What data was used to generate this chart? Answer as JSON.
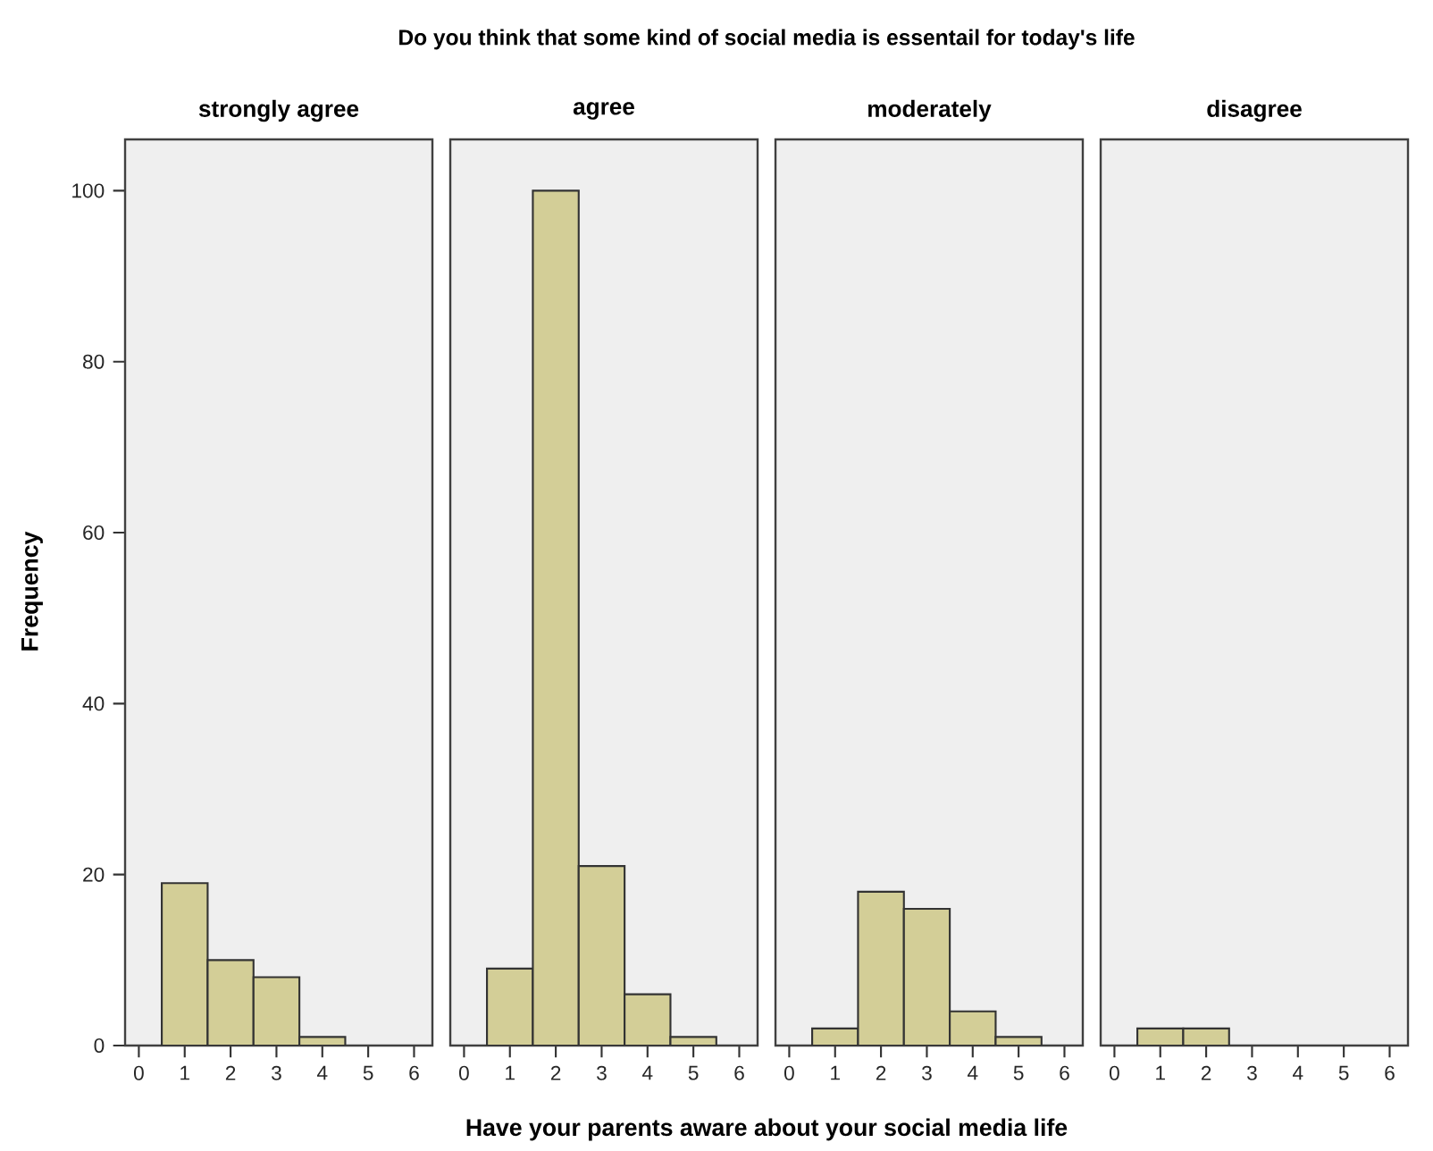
{
  "chart_data": [
    {
      "type": "histogram",
      "title": "Do you think that some kind of social media is essentail for today's life",
      "subtitle": "strongly agree",
      "xlabel": "Have your parents aware about your social media life",
      "ylabel": "Frequency",
      "bins": [
        0.5,
        1.5,
        2.5,
        3.5,
        4.5
      ],
      "values": [
        19,
        10,
        8,
        1
      ],
      "color": "#d3ce97",
      "xlim": [
        -0.3,
        6.4
      ],
      "ylim": [
        0,
        106
      ],
      "xticks": [
        0,
        1,
        2,
        3,
        4,
        5,
        6
      ],
      "yticks": [
        0,
        20,
        40,
        60,
        80,
        100
      ]
    },
    {
      "type": "histogram",
      "subtitle": "agree",
      "bins": [
        0.5,
        1.5,
        2.5,
        3.5,
        4.5,
        5.5
      ],
      "values": [
        9,
        100,
        21,
        6,
        1
      ],
      "color": "#d3ce97",
      "xlim": [
        -0.3,
        6.4
      ],
      "ylim": [
        0,
        106
      ],
      "xticks": [
        0,
        1,
        2,
        3,
        4,
        5,
        6
      ],
      "tick_labels": "x"
    },
    {
      "type": "histogram",
      "subtitle": "moderately",
      "bins": [
        0.5,
        1.5,
        2.5,
        3.5,
        4.5,
        5.5
      ],
      "values": [
        2,
        18,
        16,
        4,
        1
      ],
      "color": "#d3ce97",
      "xlim": [
        -0.3,
        6.4
      ],
      "ylim": [
        0,
        106
      ],
      "xticks": [
        0,
        1,
        2,
        3,
        4,
        5,
        6
      ],
      "tick_labels": "x"
    },
    {
      "type": "histogram",
      "subtitle": "disagree",
      "bins": [
        0.5,
        1.5,
        2.5
      ],
      "values": [
        2,
        2
      ],
      "color": "#d3ce97",
      "xlim": [
        -0.3,
        6.4
      ],
      "ylim": [
        0,
        106
      ],
      "xticks": [
        0,
        1,
        2,
        3,
        4,
        5,
        6
      ],
      "tick_labels": "x"
    }
  ]
}
